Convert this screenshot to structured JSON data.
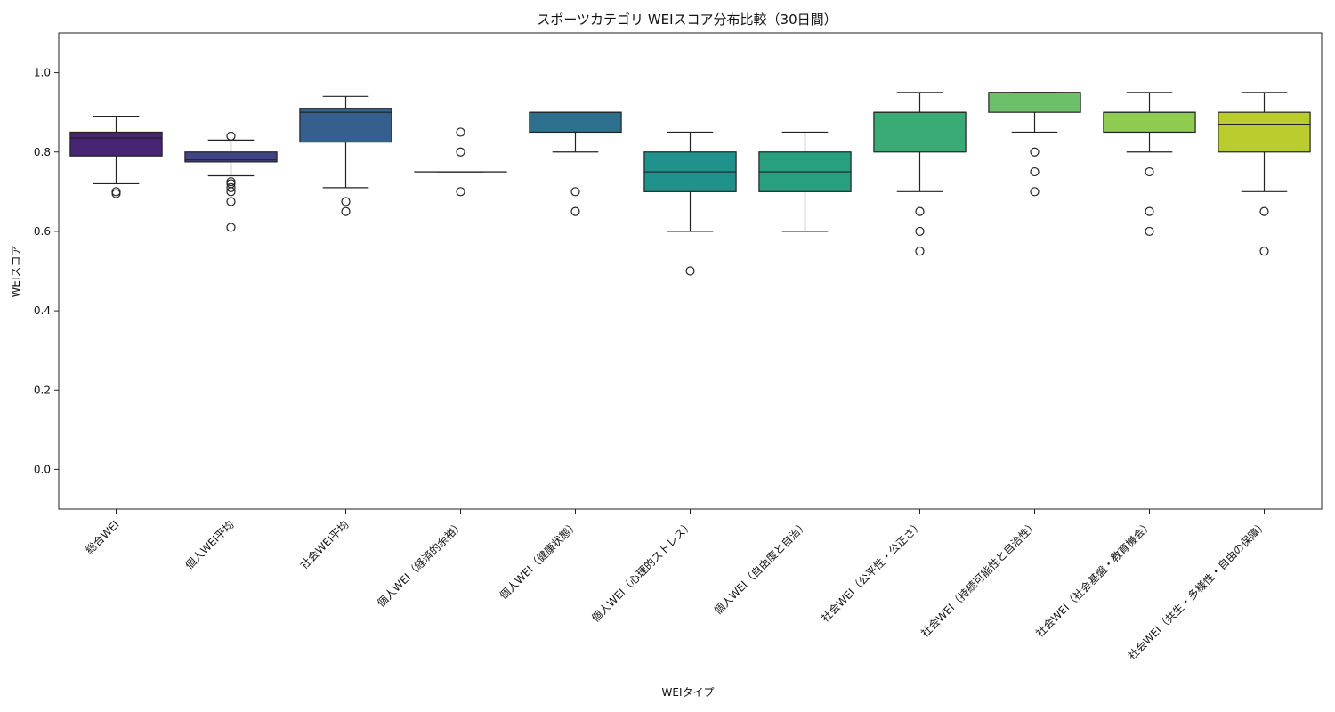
{
  "chart_data": {
    "type": "box",
    "title": "スポーツカテゴリ WEIスコア分布比較（30日間）",
    "xlabel": "WEIタイプ",
    "ylabel": "WEIスコア",
    "ylim": [
      -0.1,
      1.1
    ],
    "yticks": [
      "0.0",
      "0.2",
      "0.4",
      "0.6",
      "0.8",
      "1.0"
    ],
    "grid": false,
    "legend": "none",
    "boxes": [
      {
        "category": "総合WEI",
        "color": "#482475",
        "whisker_low": 0.72,
        "q1": 0.79,
        "median": 0.835,
        "q3": 0.85,
        "whisker_high": 0.89,
        "outliers": [
          0.7,
          0.695
        ]
      },
      {
        "category": "個人WEI平均",
        "color": "#414487",
        "whisker_low": 0.74,
        "q1": 0.775,
        "median": 0.78,
        "q3": 0.8,
        "whisker_high": 0.83,
        "outliers": [
          0.84,
          0.725,
          0.72,
          0.71,
          0.7,
          0.675,
          0.61
        ]
      },
      {
        "category": "社会WEI平均",
        "color": "#355f8d",
        "whisker_low": 0.71,
        "q1": 0.825,
        "median": 0.9,
        "q3": 0.91,
        "whisker_high": 0.94,
        "outliers": [
          0.675,
          0.65
        ]
      },
      {
        "category": "個人WEI（経済的余裕）",
        "color": "#2a788e",
        "whisker_low": 0.75,
        "q1": 0.75,
        "median": 0.75,
        "q3": 0.75,
        "whisker_high": 0.75,
        "outliers": [
          0.85,
          0.8,
          0.7
        ]
      },
      {
        "category": "個人WEI（健康状態）",
        "color": "#2d708e",
        "whisker_low": 0.8,
        "q1": 0.85,
        "median": 0.9,
        "q3": 0.9,
        "whisker_high": 0.9,
        "outliers": [
          0.7,
          0.65
        ]
      },
      {
        "category": "個人WEI（心理的ストレス）",
        "color": "#21918c",
        "whisker_low": 0.6,
        "q1": 0.7,
        "median": 0.75,
        "q3": 0.8,
        "whisker_high": 0.85,
        "outliers": [
          0.5
        ]
      },
      {
        "category": "個人WEI（自由度と自治）",
        "color": "#28a07f",
        "whisker_low": 0.6,
        "q1": 0.7,
        "median": 0.75,
        "q3": 0.8,
        "whisker_high": 0.85,
        "outliers": []
      },
      {
        "category": "社会WEI（公平性・公正さ）",
        "color": "#3bab76",
        "whisker_low": 0.7,
        "q1": 0.8,
        "median": 0.9,
        "q3": 0.9,
        "whisker_high": 0.95,
        "outliers": [
          0.65,
          0.6,
          0.55
        ]
      },
      {
        "category": "社会WEI（持続可能性と自治性）",
        "color": "#6cc06a",
        "whisker_low": 0.85,
        "q1": 0.9,
        "median": 0.95,
        "q3": 0.95,
        "whisker_high": 0.95,
        "outliers": [
          0.8,
          0.75,
          0.7
        ]
      },
      {
        "category": "社会WEI（社会基盤・教育機会）",
        "color": "#8fcb50",
        "whisker_low": 0.8,
        "q1": 0.85,
        "median": 0.9,
        "q3": 0.9,
        "whisker_high": 0.95,
        "outliers": [
          0.75,
          0.65,
          0.6
        ]
      },
      {
        "category": "社会WEI（共生・多様性・自由の保障）",
        "color": "#bbcc2f",
        "whisker_low": 0.7,
        "q1": 0.8,
        "median": 0.87,
        "q3": 0.9,
        "whisker_high": 0.95,
        "outliers": [
          0.65,
          0.55
        ]
      }
    ]
  }
}
